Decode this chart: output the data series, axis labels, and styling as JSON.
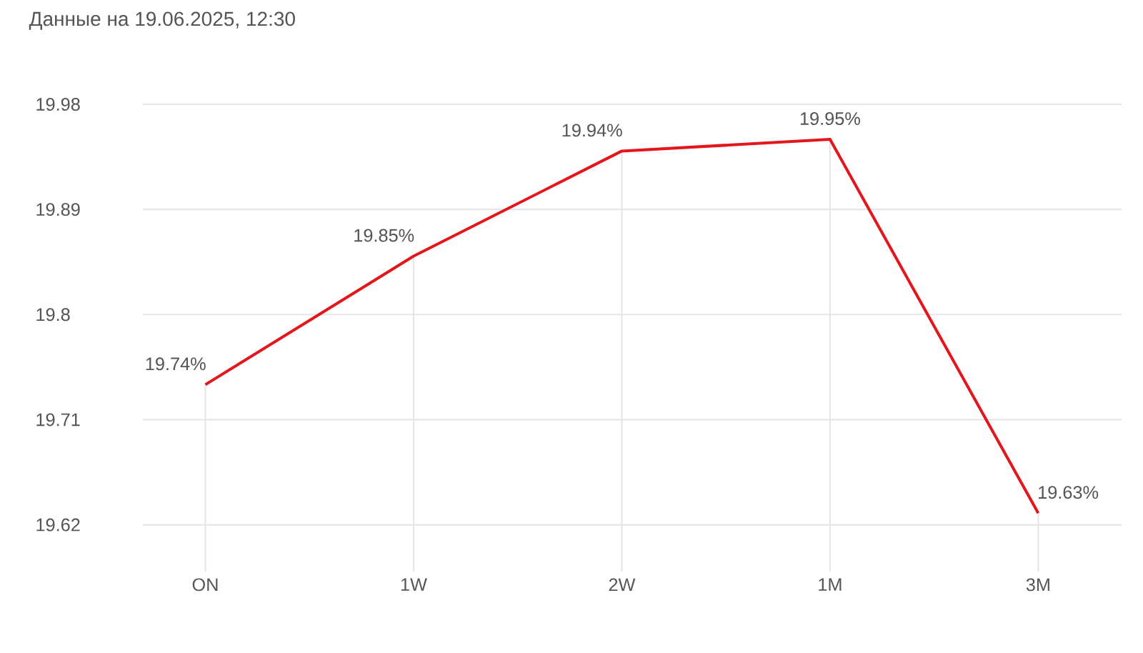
{
  "chart_data": {
    "type": "line",
    "title": "Данные на 19.06.2025, 12:30",
    "categories": [
      "ON",
      "1W",
      "2W",
      "1M",
      "3M"
    ],
    "series": [
      {
        "color": "#e3161b",
        "values": [
          19.74,
          19.85,
          19.94,
          19.95,
          19.63
        ],
        "value_labels": [
          "19.74%",
          "19.85%",
          "19.94%",
          "19.95%",
          "19.63%"
        ]
      }
    ],
    "ylim": [
      19.58,
      19.98
    ],
    "yticks": [
      19.62,
      19.71,
      19.8,
      19.89,
      19.98
    ],
    "grid": true,
    "marker": "none",
    "line_style": "solid"
  }
}
